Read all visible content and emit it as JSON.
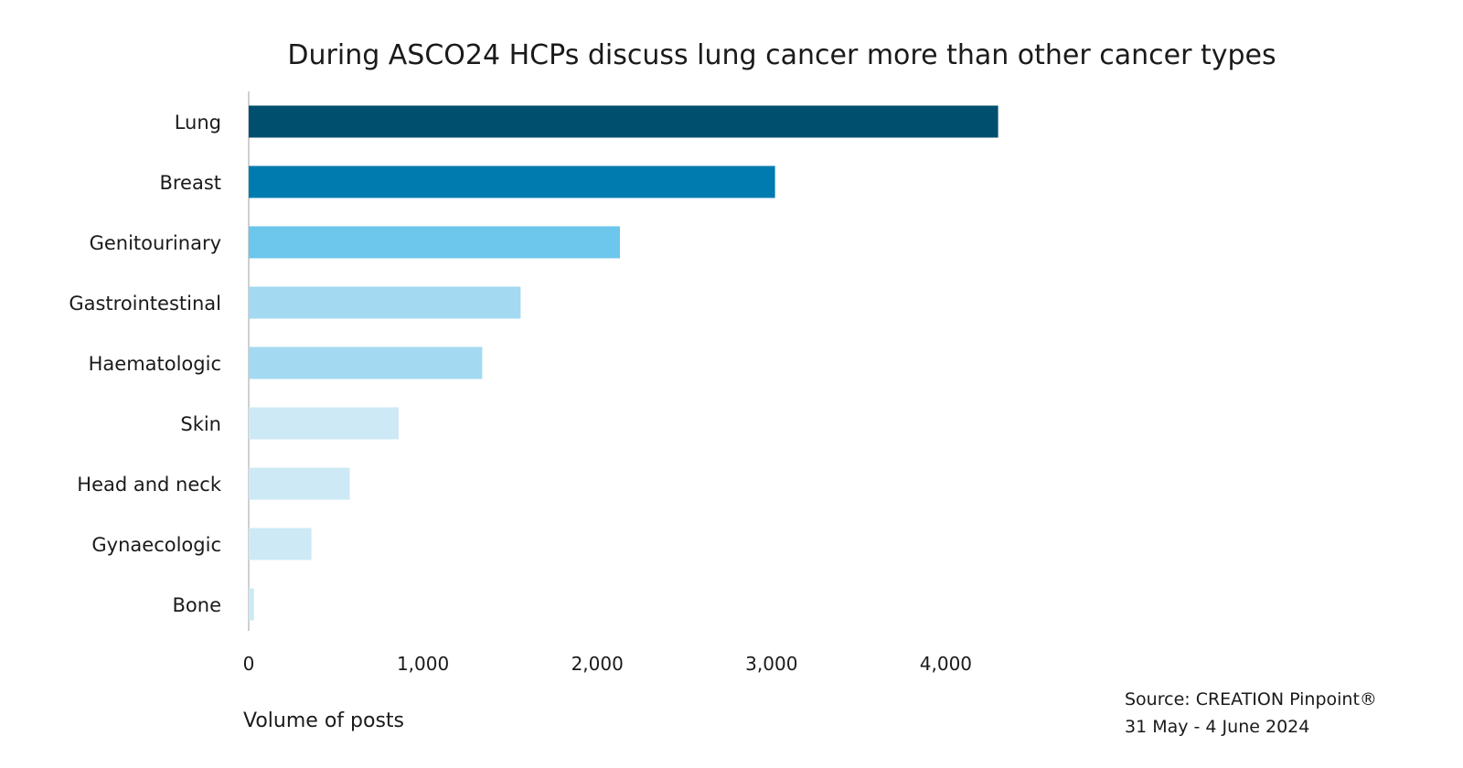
{
  "chart_data": {
    "type": "bar",
    "orientation": "horizontal",
    "title": "During ASCO24 HCPs discuss lung cancer more than other cancer types",
    "xlabel": "Volume of posts",
    "ylabel": "",
    "categories": [
      "Lung",
      "Breast",
      "Genitourinary",
      "Gastrointestinal",
      "Haematologic",
      "Skin",
      "Head and neck",
      "Gynaecologic",
      "Bone"
    ],
    "values": [
      4300,
      3020,
      2130,
      1560,
      1340,
      860,
      580,
      360,
      30
    ],
    "bar_colors": [
      "#004f6e",
      "#007baf",
      "#6dc6ec",
      "#a3daf1",
      "#a3daf1",
      "#cde9f6",
      "#cde9f6",
      "#cde9f6",
      "#cde9f6"
    ],
    "xlim": [
      0,
      4300
    ],
    "xticks": [
      0,
      1000,
      2000,
      3000,
      4000
    ],
    "xtick_labels": [
      "0",
      "1,000",
      "2,000",
      "3,000",
      "4,000"
    ],
    "grid": false,
    "legend": "none"
  },
  "source": {
    "line1": "Source: CREATION Pinpoint®",
    "line2": "31 May - 4 June 2024"
  },
  "colors": {
    "axis": "#d0d0d0",
    "text": "#1a1a1a"
  }
}
